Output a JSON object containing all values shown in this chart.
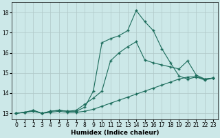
{
  "background_color": "#cce8e8",
  "grid_color": "#b0c8c8",
  "line_color": "#1a6b5a",
  "xlabel": "Humidex (Indice chaleur)",
  "ylim": [
    12.7,
    18.5
  ],
  "xlim": [
    -0.5,
    23.5
  ],
  "yticks": [
    13,
    14,
    15,
    16,
    17,
    18
  ],
  "xticks": [
    0,
    1,
    2,
    3,
    4,
    5,
    6,
    7,
    8,
    9,
    10,
    11,
    12,
    13,
    14,
    15,
    16,
    17,
    18,
    19,
    20,
    21,
    22,
    23
  ],
  "series1_x": [
    0,
    1,
    2,
    3,
    4,
    5,
    6,
    7,
    8,
    9,
    10,
    11,
    12,
    13,
    14,
    15,
    16,
    17,
    18,
    19,
    20,
    21,
    22,
    23
  ],
  "series1_y": [
    13.0,
    13.05,
    13.1,
    13.0,
    13.05,
    13.1,
    13.05,
    13.05,
    13.1,
    13.2,
    13.35,
    13.5,
    13.65,
    13.8,
    13.95,
    14.1,
    14.25,
    14.4,
    14.55,
    14.7,
    14.8,
    14.82,
    14.7,
    14.75
  ],
  "series2_x": [
    0,
    1,
    2,
    3,
    4,
    5,
    6,
    7,
    8,
    9,
    10,
    11,
    12,
    13,
    14,
    15,
    16,
    17,
    18,
    19,
    20,
    21,
    22,
    23
  ],
  "series2_y": [
    13.0,
    13.05,
    13.15,
    13.0,
    13.1,
    13.15,
    13.1,
    13.15,
    13.45,
    13.75,
    14.1,
    15.6,
    16.0,
    16.3,
    16.55,
    15.65,
    15.5,
    15.4,
    15.3,
    15.2,
    15.6,
    14.9,
    14.7,
    14.75
  ],
  "series3_x": [
    0,
    1,
    2,
    3,
    4,
    5,
    6,
    7,
    8,
    9,
    10,
    11,
    12,
    13,
    14,
    15,
    16,
    17,
    18,
    19,
    20,
    21,
    22,
    23
  ],
  "series3_y": [
    13.0,
    13.05,
    13.15,
    13.0,
    13.1,
    13.15,
    13.1,
    13.1,
    13.3,
    14.1,
    16.5,
    16.7,
    16.85,
    17.1,
    18.1,
    17.55,
    17.1,
    16.2,
    15.5,
    14.85,
    14.7,
    14.8,
    14.65,
    14.75
  ]
}
